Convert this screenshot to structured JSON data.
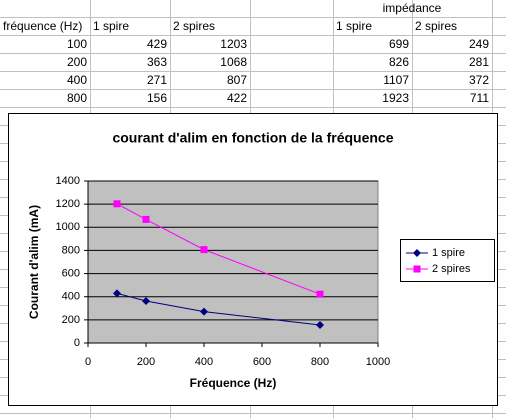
{
  "table": {
    "rows": [
      [
        null,
        null,
        null,
        null,
        "impédance",
        null
      ],
      [
        "fréquence (Hz)",
        "1 spire",
        "2 spires",
        null,
        "1 spire",
        "2 spires"
      ],
      [
        100,
        429,
        1203,
        null,
        699,
        249
      ],
      [
        200,
        363,
        1068,
        null,
        826,
        281
      ],
      [
        400,
        271,
        807,
        null,
        1107,
        372
      ],
      [
        800,
        156,
        422,
        null,
        1923,
        711
      ]
    ]
  },
  "chart_data": {
    "type": "line",
    "title": "courant d'alim en fonction de la fréquence",
    "x_label": "Fréquence (Hz)",
    "y_label": "Courant d'alim (mA)",
    "x": [
      100,
      200,
      400,
      800
    ],
    "series": [
      {
        "name": "1 spire",
        "color": "#000080",
        "marker": "diamond",
        "values": [
          429,
          363,
          271,
          156
        ]
      },
      {
        "name": "2 spires",
        "color": "#ff00ff",
        "marker": "square",
        "values": [
          1203,
          1068,
          807,
          422
        ]
      }
    ],
    "xlim": [
      0,
      1000
    ],
    "xticks": [
      0,
      200,
      400,
      600,
      800,
      1000
    ],
    "ylim": [
      0,
      1400
    ],
    "yticks": [
      0,
      200,
      400,
      600,
      800,
      1000,
      1200,
      1400
    ],
    "grid": true,
    "legend": "right"
  }
}
